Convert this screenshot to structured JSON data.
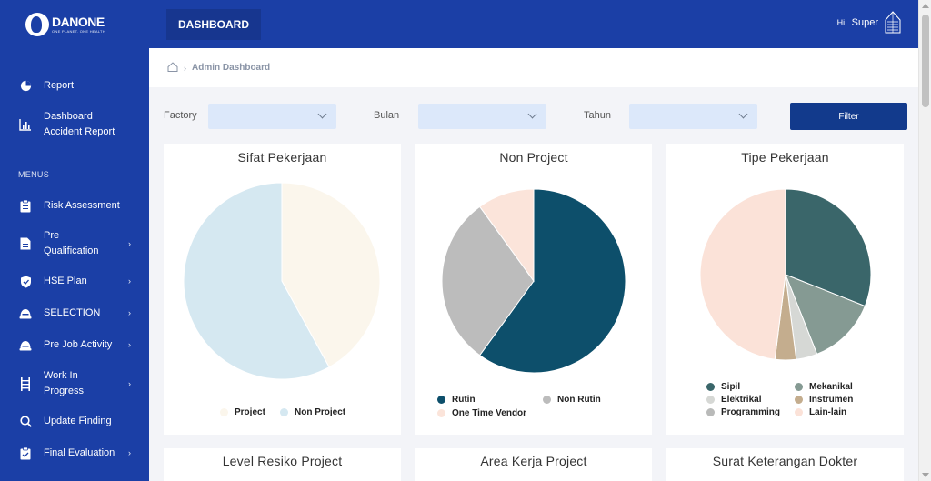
{
  "brand": {
    "name": "DANONE",
    "tagline": "ONE PLANET. ONE HEALTH"
  },
  "topbar": {
    "tab": "DASHBOARD",
    "greeting": "Hi,",
    "user_name": "Super"
  },
  "sidebar": {
    "top_items": [
      {
        "label": "Report",
        "icon": "pie-chart-icon"
      },
      {
        "label": "Dashboard\nAccident Report",
        "icon": "bar-chart-icon"
      }
    ],
    "menus_label": "MENUS",
    "items": [
      {
        "label": "Risk Assessment",
        "icon": "clipboard-icon",
        "has_sub": false
      },
      {
        "label": "Pre\nQualification",
        "icon": "document-icon",
        "has_sub": true
      },
      {
        "label": "HSE Plan",
        "icon": "shield-check-icon",
        "has_sub": true
      },
      {
        "label": "SELECTION",
        "icon": "helmet-icon",
        "has_sub": true
      },
      {
        "label": "Pre Job Activity",
        "icon": "helmet-icon",
        "has_sub": true
      },
      {
        "label": "Work In\nProgress",
        "icon": "ladder-icon",
        "has_sub": true
      },
      {
        "label": "Update Finding",
        "icon": "search-icon",
        "has_sub": false
      },
      {
        "label": "Final Evaluation",
        "icon": "clipboard-check-icon",
        "has_sub": true
      }
    ]
  },
  "breadcrumb": {
    "current": "Admin Dashboard"
  },
  "filters": {
    "factory_label": "Factory",
    "bulan_label": "Bulan",
    "tahun_label": "Tahun",
    "factory_value": "",
    "bulan_value": "",
    "tahun_value": "",
    "button_label": "Filter"
  },
  "chart_data": [
    {
      "type": "pie",
      "title": "Sifat Pekerjaan",
      "categories": [
        "Project",
        "Non Project"
      ],
      "values": [
        42,
        58
      ],
      "colors": [
        "#fbf6ec",
        "#d5e8f1"
      ]
    },
    {
      "type": "pie",
      "title": "Non Project",
      "categories": [
        "Rutin",
        "Non Rutin",
        "One Time Vendor"
      ],
      "values": [
        60,
        30,
        10
      ],
      "colors": [
        "#0d4f6b",
        "#bcbcbc",
        "#fbe4da"
      ]
    },
    {
      "type": "pie",
      "title": "Tipe Pekerjaan",
      "categories": [
        "Sipil",
        "Mekanikal",
        "Elektrikal",
        "Instrumen",
        "Programming",
        "Lain-lain"
      ],
      "values": [
        31,
        13,
        4,
        4,
        0,
        48
      ],
      "colors": [
        "#3a666a",
        "#859a93",
        "#d6d8d5",
        "#c4ad8e",
        "#b9bab9",
        "#fbe2d8"
      ]
    }
  ],
  "bottom_cards": [
    "Level Resiko Project",
    "Area Kerja Project",
    "Surat Keterangan Dokter"
  ]
}
